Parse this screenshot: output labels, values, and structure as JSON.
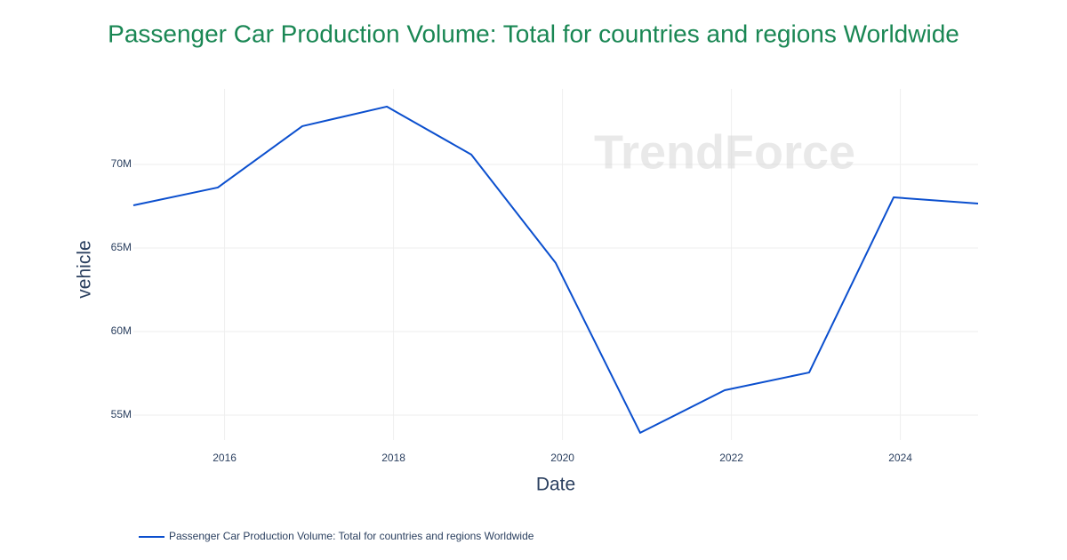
{
  "chart_data": {
    "type": "line",
    "title": "Passenger Car Production Volume: Total for countries and regions Worldwide",
    "x_label": "Date",
    "y_label": "vehicle",
    "watermark": "TrendForce",
    "x": [
      2014.92,
      2015.92,
      2016.92,
      2017.92,
      2018.92,
      2019.92,
      2020.92,
      2021.92,
      2022.92,
      2023.92,
      2024.92
    ],
    "series": [
      {
        "name": "Passenger Car Production Volume: Total for countries and regions Worldwide",
        "color": "#0b4fce",
        "values": [
          67550000,
          68620000,
          72290000,
          73460000,
          70590000,
          64100000,
          53940000,
          56490000,
          57550000,
          68030000,
          67660000
        ]
      }
    ],
    "xlim": [
      2014.92,
      2024.92
    ],
    "xticks": [
      2016,
      2018,
      2020,
      2022,
      2024
    ],
    "ylim": [
      53510000,
      74520000
    ],
    "yticks": [
      {
        "value": 55000000,
        "label": "55M"
      },
      {
        "value": 60000000,
        "label": "60M"
      },
      {
        "value": 65000000,
        "label": "65M"
      },
      {
        "value": 70000000,
        "label": "70M"
      }
    ],
    "grid": true,
    "legend": "bottom-left"
  }
}
